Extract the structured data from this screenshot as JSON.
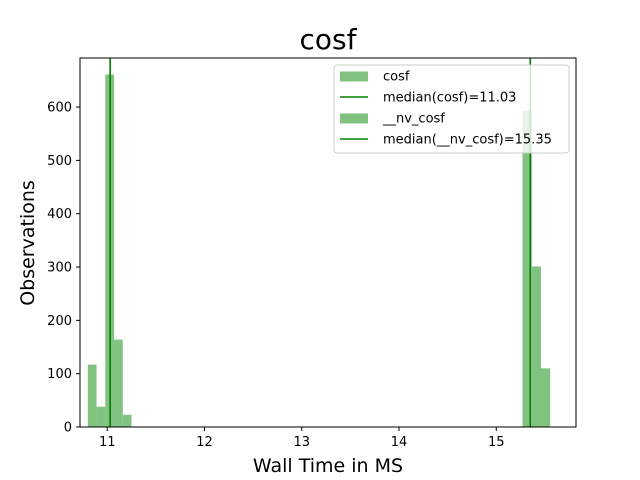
{
  "chart_data": {
    "type": "bar",
    "title": "cosf",
    "xlabel": "Wall Time in MS",
    "ylabel": "Observations",
    "xlim": [
      10.72,
      15.82
    ],
    "ylim": [
      0,
      692
    ],
    "xticks": [
      11,
      12,
      13,
      14,
      15
    ],
    "yticks": [
      0,
      100,
      200,
      300,
      400,
      500,
      600
    ],
    "grid": false,
    "legend_position": "top-right",
    "colors": {
      "bar": "#81c281",
      "median": "#008000",
      "spine": "#000000"
    },
    "series": [
      {
        "name": "cosf",
        "bin_width": 0.09,
        "bins": [
          {
            "x": 10.8,
            "value": 117
          },
          {
            "x": 10.89,
            "value": 38
          },
          {
            "x": 10.98,
            "value": 661
          },
          {
            "x": 11.07,
            "value": 164
          },
          {
            "x": 11.16,
            "value": 23
          }
        ]
      },
      {
        "name": "__nv_cosf",
        "bin_width": 0.095,
        "bins": [
          {
            "x": 15.27,
            "value": 593
          },
          {
            "x": 15.365,
            "value": 301
          },
          {
            "x": 15.46,
            "value": 110
          }
        ]
      }
    ],
    "medians": [
      {
        "name": "median(cosf)=11.03",
        "value": 11.03
      },
      {
        "name": "median(__nv_cosf)=15.35",
        "value": 15.35
      }
    ],
    "legend": [
      {
        "label": "cosf",
        "kind": "patch"
      },
      {
        "label": "median(cosf)=11.03",
        "kind": "line"
      },
      {
        "label": "__nv_cosf",
        "kind": "patch"
      },
      {
        "label": "median(__nv_cosf)=15.35",
        "kind": "line"
      }
    ]
  }
}
